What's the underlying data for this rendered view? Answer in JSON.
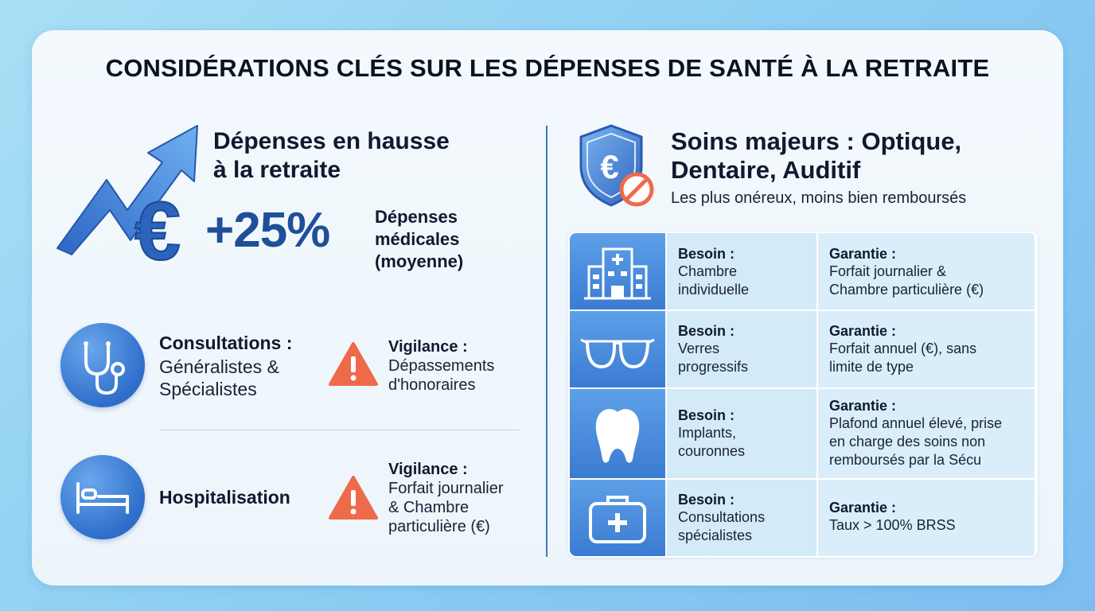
{
  "title": "CONSIDÉRATIONS CLÉS SUR LES DÉPENSES DE SANTÉ À LA RETRAITE",
  "left": {
    "hausse": {
      "heading": "Dépenses en hausse\nà la retraite",
      "stat": "+25%",
      "stat_label": "Dépenses\nmédicales\n(moyenne)"
    },
    "consultations": {
      "label": "Consultations :",
      "text": "Généralistes &\nSpécialistes",
      "vigilance_label": "Vigilance :",
      "vigilance_text": "Dépassements\nd'honoraires"
    },
    "hospitalisation": {
      "label": "Hospitalisation",
      "vigilance_label": "Vigilance :",
      "vigilance_text": "Forfait journalier\n& Chambre\nparticulière (€)"
    }
  },
  "right": {
    "heading": "Soins majeurs : Optique,\nDentaire, Auditif",
    "subtitle": "Les plus onéreux, moins bien remboursés",
    "rows": [
      {
        "icon": "hospital-building-icon",
        "need_label": "Besoin :",
        "need": "Chambre\nindividuelle",
        "guarantee_label": "Garantie :",
        "guarantee": "Forfait journalier &\nChambre particulière (€)"
      },
      {
        "icon": "glasses-icon",
        "need_label": "Besoin :",
        "need": "Verres\nprogressifs",
        "guarantee_label": "Garantie :",
        "guarantee": "Forfait annuel (€), sans\nlimite de type"
      },
      {
        "icon": "tooth-icon",
        "need_label": "Besoin :",
        "need": "Implants,\ncouronnes",
        "guarantee_label": "Garantie :",
        "guarantee": "Plafond annuel élevé, prise\nen charge des soins non\nremboursés par la Sécu"
      },
      {
        "icon": "first-aid-kit-icon",
        "need_label": "Besoin :",
        "need": "Consultations\nspécialistes",
        "guarantee_label": "Garantie :",
        "guarantee": "Taux > 100% BRSS"
      }
    ]
  },
  "colors": {
    "accent_blue": "#2f6fcc",
    "warning_orange": "#ef6a4a",
    "divider": "#3a78c8"
  }
}
